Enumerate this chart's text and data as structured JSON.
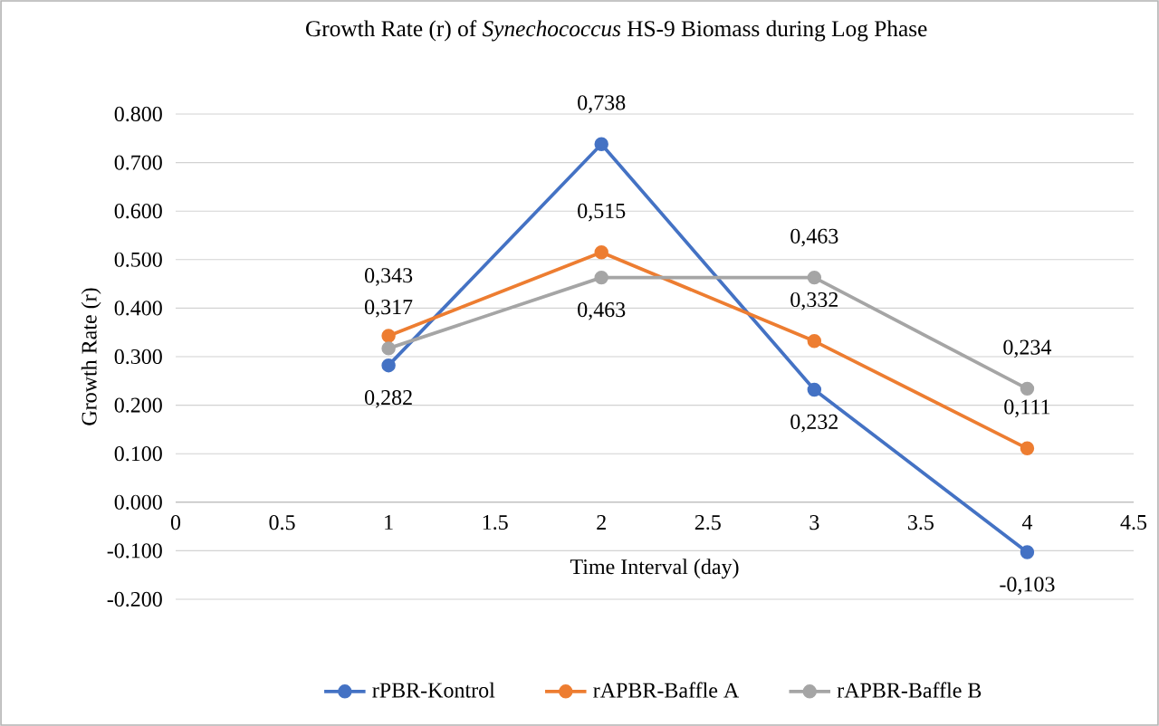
{
  "chart_data": {
    "type": "line",
    "title": "Growth Rate (r) of *Synechococcus* HS-9 Biomass during Log Phase",
    "xlabel": "Time Interval (day)",
    "ylabel": "Growth Rate (r)",
    "x": [
      1,
      2,
      3,
      4
    ],
    "xlim": [
      0,
      4.5
    ],
    "xticks": [
      0,
      0.5,
      1,
      1.5,
      2,
      2.5,
      3,
      3.5,
      4,
      4.5
    ],
    "ylim": [
      -0.2,
      0.8
    ],
    "yticks": [
      {
        "value": -0.2,
        "label": "-0.200"
      },
      {
        "value": -0.1,
        "label": "-0.100"
      },
      {
        "value": 0,
        "label": "0.000"
      },
      {
        "value": 0.1,
        "label": "0.100"
      },
      {
        "value": 0.2,
        "label": "0.200"
      },
      {
        "value": 0.3,
        "label": "0.300"
      },
      {
        "value": 0.4,
        "label": "0.400"
      },
      {
        "value": 0.5,
        "label": "0.500"
      },
      {
        "value": 0.6,
        "label": "0.600"
      },
      {
        "value": 0.7,
        "label": "0.700"
      },
      {
        "value": 0.8,
        "label": "0.800"
      }
    ],
    "grid": "y",
    "legend": "bottom",
    "marker": "circle",
    "series": [
      {
        "name": "rPBR-Kontrol",
        "color": "#4472c4",
        "values": [
          0.282,
          0.738,
          0.232,
          -0.103
        ],
        "value_labels": [
          "0,282",
          "0,738",
          "0,232",
          "-0,103"
        ]
      },
      {
        "name": "rAPBR-Baffle A",
        "color": "#ed7d31",
        "values": [
          0.343,
          0.515,
          0.332,
          0.111
        ],
        "value_labels": [
          "0,343",
          "0,515",
          "0,332",
          "0,111"
        ]
      },
      {
        "name": "rAPBR-Baffle B",
        "color": "#a5a5a5",
        "values": [
          0.317,
          0.463,
          0.463,
          0.234
        ],
        "value_labels": [
          "0,317",
          "0,463",
          "0,463",
          "0,234"
        ]
      }
    ]
  }
}
